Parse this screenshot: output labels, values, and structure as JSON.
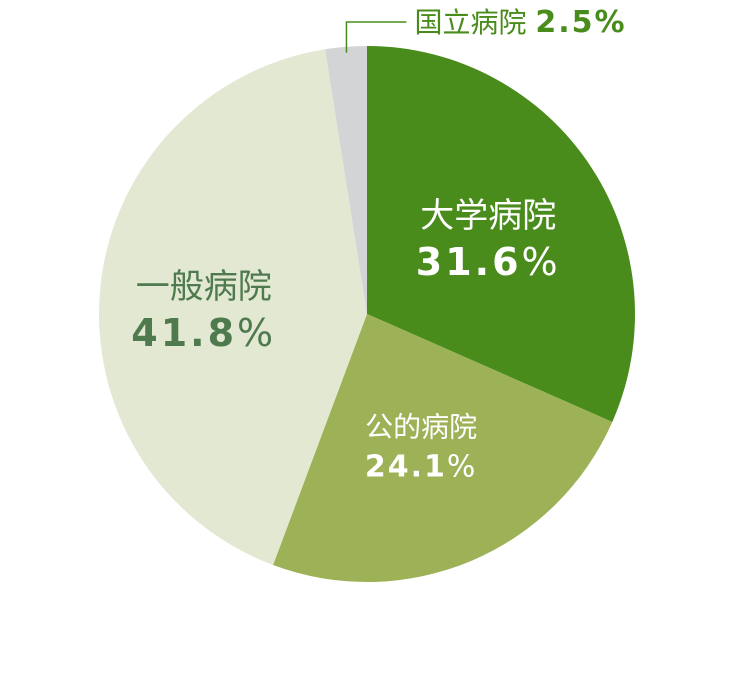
{
  "chart_data": {
    "type": "pie",
    "slices": [
      {
        "name": "大学病院",
        "value": 31.6,
        "label": "31.6",
        "unit": "%",
        "color": "#4a8c1c",
        "text_color": "#ffffff"
      },
      {
        "name": "公的病院",
        "value": 24.1,
        "label": "24.1",
        "unit": "%",
        "color": "#9db257",
        "text_color": "#ffffff"
      },
      {
        "name": "一般病院",
        "value": 41.8,
        "label": "41.8",
        "unit": "%",
        "color": "#e2e8d2",
        "text_color": "#4e7a4e"
      },
      {
        "name": "国立病院",
        "value": 2.5,
        "label": "2.5",
        "unit": "%",
        "color": "#d2d4d6",
        "text_color": "#4a8c1c"
      }
    ],
    "start_angle": "12 o'clock",
    "direction": "clockwise",
    "leader_color": "#4a8c1c"
  }
}
